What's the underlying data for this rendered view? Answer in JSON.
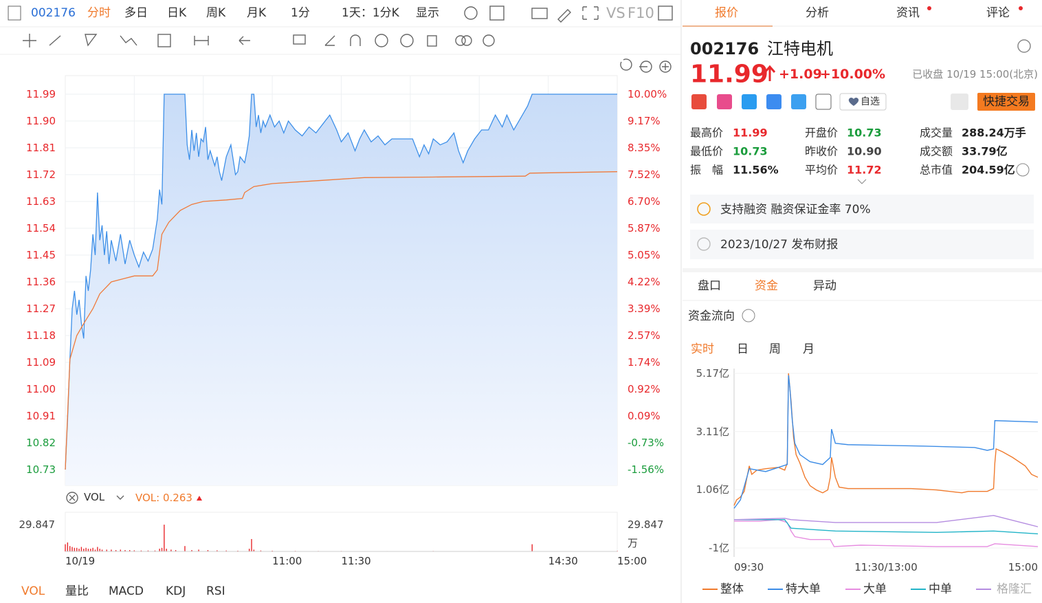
{
  "toolbar": {
    "code": "002176",
    "items": [
      "分时",
      "多日",
      "日K",
      "周K",
      "月K",
      "1分",
      "1天：1分K",
      "显示",
      "VS",
      "F10"
    ],
    "active": 0
  },
  "price_chart": {
    "type": "line",
    "xlim": [
      0,
      240
    ],
    "ylim": [
      10.73,
      11.99
    ],
    "yticks": [
      11.99,
      {
        "value": 11.9,
        "label": "11.90"
      },
      11.81,
      11.72,
      11.63,
      11.54,
      11.45,
      11.36,
      11.27,
      11.18,
      11.09,
      {
        "value": 11,
        "label": "11.00"
      },
      10.91,
      10.82,
      10.73
    ],
    "y2lim": [
      -1.56,
      10
    ],
    "y2ticks": [
      {
        "value": 10,
        "label": "10.00%"
      },
      {
        "value": 9.17,
        "label": "9.17%"
      },
      {
        "value": 8.35,
        "label": "8.35%"
      },
      {
        "value": 7.52,
        "label": "7.52%"
      },
      {
        "value": 6.7,
        "label": "6.70%"
      },
      {
        "value": 5.87,
        "label": "5.87%"
      },
      {
        "value": 5.05,
        "label": "5.05%"
      },
      {
        "value": 4.22,
        "label": "4.22%"
      },
      {
        "value": 3.39,
        "label": "3.39%"
      },
      {
        "value": 2.57,
        "label": "2.57%"
      },
      {
        "value": 1.74,
        "label": "1.74%"
      },
      {
        "value": 0.92,
        "label": "0.92%"
      },
      {
        "value": 0.09,
        "label": "0.09%"
      },
      {
        "value": -0.73,
        "label": "-0.73%"
      },
      {
        "value": -1.56,
        "label": "-1.56%"
      }
    ],
    "xticks": [
      {
        "value": 0,
        "label": "10/19"
      },
      {
        "value": 90,
        "label": "11:00"
      },
      {
        "value": 120,
        "label": "11:30"
      },
      {
        "value": 210,
        "label": "14:30"
      },
      {
        "value": 240,
        "label": "15:00"
      }
    ],
    "xgrid": [
      30,
      60,
      90,
      120,
      150,
      180,
      210
    ],
    "grid": true,
    "up_color": "#e8282c",
    "down_color": "#1a9c3c",
    "series": [
      {
        "color": "#3d8fe8",
        "x": [
          0,
          1,
          2,
          3,
          4,
          5,
          6,
          7,
          8,
          9,
          10,
          11,
          12,
          13,
          14,
          15,
          16,
          17,
          18,
          19,
          20,
          22,
          24,
          26,
          28,
          30,
          32,
          34,
          36,
          38,
          40,
          41,
          42,
          43,
          52,
          53,
          54,
          55,
          56,
          57,
          58,
          59,
          60,
          61,
          62,
          63,
          65,
          66,
          67,
          68,
          70,
          72,
          74,
          75,
          76,
          78,
          79,
          80,
          81,
          82,
          83,
          84,
          85,
          86,
          87,
          89,
          91,
          93,
          95,
          97,
          100,
          103,
          106,
          109,
          112,
          115,
          118,
          120,
          123,
          126,
          128,
          130,
          133,
          136,
          139,
          142,
          145,
          148,
          151,
          154,
          156,
          158,
          160,
          163,
          166,
          169,
          171,
          173,
          175,
          178,
          181,
          184,
          187,
          190,
          192,
          195,
          198,
          201,
          203,
          240
        ],
        "values": [
          10.73,
          10.9,
          11.1,
          11.27,
          11.33,
          11.25,
          11.3,
          11.22,
          11.17,
          11.38,
          11.33,
          11.4,
          11.52,
          11.45,
          11.66,
          11.5,
          11.55,
          11.45,
          11.53,
          11.42,
          11.5,
          11.43,
          11.52,
          11.42,
          11.5,
          11.45,
          11.41,
          11.46,
          11.43,
          11.47,
          11.57,
          11.67,
          11.62,
          11.99,
          11.99,
          11.82,
          11.77,
          11.87,
          11.8,
          11.86,
          11.78,
          11.84,
          11.83,
          11.88,
          11.77,
          11.8,
          11.75,
          11.78,
          11.73,
          11.7,
          11.78,
          11.82,
          11.72,
          11.73,
          11.78,
          11.76,
          11.8,
          11.85,
          11.99,
          11.99,
          11.88,
          11.92,
          11.86,
          11.9,
          11.88,
          11.92,
          11.88,
          11.9,
          11.86,
          11.9,
          11.87,
          11.85,
          11.88,
          11.86,
          11.89,
          11.92,
          11.87,
          11.83,
          11.86,
          11.8,
          11.84,
          11.87,
          11.83,
          11.85,
          11.82,
          11.84,
          11.84,
          11.84,
          11.84,
          11.78,
          11.82,
          11.79,
          11.84,
          11.82,
          11.83,
          11.86,
          11.8,
          11.76,
          11.8,
          11.84,
          11.87,
          11.87,
          11.92,
          11.88,
          11.92,
          11.87,
          11.91,
          11.95,
          11.99,
          11.99
        ]
      },
      {
        "color": "#f07a3a",
        "x": [
          0,
          2,
          5,
          8,
          12,
          15,
          20,
          25,
          30,
          38,
          40,
          42,
          45,
          50,
          55,
          60,
          70,
          77,
          78,
          82,
          90,
          110,
          130,
          160,
          200,
          202,
          240
        ],
        "values": [
          10.73,
          11.1,
          11.18,
          11.22,
          11.27,
          11.32,
          11.36,
          11.37,
          11.38,
          11.38,
          11.4,
          11.52,
          11.56,
          11.6,
          11.62,
          11.63,
          11.635,
          11.64,
          11.66,
          11.68,
          11.69,
          11.7,
          11.71,
          11.712,
          11.715,
          11.725,
          11.73
        ]
      }
    ]
  },
  "volume_chart": {
    "type": "bar",
    "indicator": "VOL",
    "readout": "VOL: 0.263",
    "unit": "万",
    "color": "#e8282c",
    "ylim": [
      0,
      29.847
    ],
    "yticks": [
      29.847
    ],
    "x": [
      0,
      1,
      2,
      3,
      4,
      5,
      6,
      7,
      8,
      9,
      10,
      11,
      12,
      13,
      14,
      15,
      16,
      18,
      20,
      22,
      24,
      26,
      28,
      30,
      33,
      36,
      39,
      41,
      42,
      43,
      44,
      46,
      48,
      52,
      55,
      58,
      62,
      66,
      70,
      75,
      80,
      81,
      82,
      85,
      90,
      100,
      110,
      120,
      140,
      160,
      180,
      203,
      220,
      240
    ],
    "values": [
      8,
      10,
      6,
      5,
      4,
      4,
      3,
      5,
      3,
      4,
      3,
      3,
      4,
      2,
      5,
      3,
      2,
      2,
      2,
      1.5,
      2,
      1.5,
      1.5,
      1.2,
      1,
      1,
      1,
      3,
      4,
      29.8,
      3,
      2,
      1.5,
      6,
      1.5,
      2,
      1.5,
      1.2,
      1,
      0.8,
      3,
      13.8,
      2,
      1,
      0.8,
      0.6,
      0.5,
      0.5,
      0.4,
      0.5,
      0.4,
      8,
      0.4,
      0.5
    ]
  },
  "bottom_tabs": [
    "VOL",
    "量比",
    "MACD",
    "KDJ",
    "RSI"
  ],
  "quote": {
    "tabs": [
      "报价",
      "分析",
      "资讯",
      "评论"
    ],
    "code": "002176",
    "name": "江特电机",
    "price": "11.99",
    "change": "+1.09",
    "change_pct": "+10.00%",
    "status": "已收盘 10/19 15:00(北京)",
    "watchlist": "自选",
    "trade": "快捷交易",
    "stats": [
      {
        "label": "最高价",
        "value": "11.99",
        "color": "#e8282c"
      },
      {
        "label": "开盘价",
        "value": "10.73",
        "color": "#1a9c3c"
      },
      {
        "label": "成交量",
        "value": "288.24万手",
        "color": "#222222"
      },
      {
        "label": "最低价",
        "value": "10.73",
        "color": "#1a9c3c"
      },
      {
        "label": "昨收价",
        "value": "10.90",
        "color": "#444444"
      },
      {
        "label": "成交额",
        "value": "33.79亿",
        "color": "#222222"
      },
      {
        "label": "振　幅",
        "value": "11.56%",
        "color": "#222222"
      },
      {
        "label": "平均价",
        "value": "11.72",
        "color": "#e8282c"
      },
      {
        "label": "总市值",
        "value": "204.59亿",
        "color": "#222222"
      }
    ],
    "notices": [
      "支持融资 融资保证金率 70%",
      "2023/10/27 发布财报"
    ],
    "subtabs": [
      "盘口",
      "资金",
      "异动"
    ]
  },
  "fund_flow": {
    "type": "line",
    "title": "资金流向",
    "periods": [
      "实时",
      "日",
      "周",
      "月"
    ],
    "xlim": [
      0,
      240
    ],
    "ylim": [
      -1,
      5.17
    ],
    "yticks": [
      {
        "value": 5.17,
        "label": "5.17亿"
      },
      {
        "value": 3.11,
        "label": "3.11亿"
      },
      {
        "value": 1.06,
        "label": "1.06亿"
      },
      {
        "value": -1,
        "label": "-1亿"
      }
    ],
    "xticks": [
      {
        "value": 0,
        "label": "09:30"
      },
      {
        "value": 120,
        "label": "11:30/13:00"
      },
      {
        "value": 240,
        "label": "15:00"
      }
    ],
    "watermark": "格隆汇",
    "series": [
      {
        "name": "整体",
        "color": "#f07a2c",
        "x": [
          0,
          2,
          5,
          8,
          12,
          14,
          18,
          25,
          35,
          40,
          42,
          43,
          45,
          47,
          49,
          52,
          56,
          60,
          65,
          70,
          74,
          76,
          77,
          80,
          83,
          90,
          100,
          120,
          140,
          160,
          180,
          185,
          200,
          205,
          206,
          207,
          212,
          220,
          230,
          235,
          240
        ],
        "values": [
          0.5,
          0.7,
          0.8,
          1.0,
          1.9,
          1.6,
          1.75,
          1.8,
          1.85,
          1.75,
          2.0,
          5.17,
          4.2,
          2.9,
          2.3,
          2.0,
          1.5,
          1.2,
          1.05,
          0.95,
          1.05,
          1.5,
          2.2,
          1.5,
          1.15,
          1.1,
          1.1,
          1.1,
          1.1,
          1.05,
          0.95,
          1.0,
          1.0,
          1.1,
          2.0,
          2.5,
          2.4,
          2.2,
          1.9,
          1.6,
          1.5
        ]
      },
      {
        "name": "特大单",
        "color": "#3c8ce6",
        "x": [
          0,
          5,
          12,
          25,
          42,
          43,
          44,
          46,
          48,
          52,
          60,
          70,
          76,
          77,
          80,
          90,
          150,
          190,
          200,
          205,
          206,
          240
        ],
        "values": [
          0.4,
          0.7,
          1.8,
          1.7,
          1.95,
          5.1,
          4.7,
          3.5,
          2.7,
          2.3,
          2.05,
          1.95,
          2.2,
          3.2,
          2.7,
          2.65,
          2.6,
          2.55,
          2.45,
          2.5,
          3.5,
          3.45
        ]
      },
      {
        "name": "大单",
        "color": "#e68ce0",
        "x": [
          0,
          20,
          35,
          42,
          45,
          48,
          60,
          76,
          79,
          100,
          160,
          200,
          206,
          240
        ],
        "values": [
          -0.05,
          -0.05,
          0,
          -0.1,
          -0.4,
          -0.6,
          -0.7,
          -0.7,
          -0.95,
          -0.9,
          -0.95,
          -0.95,
          -0.85,
          -0.95
        ]
      },
      {
        "name": "中单",
        "color": "#22b4c8",
        "x": [
          0,
          40,
          45,
          80,
          160,
          205,
          240
        ],
        "values": [
          0,
          0,
          -0.3,
          -0.4,
          -0.45,
          -0.4,
          -0.5
        ]
      },
      {
        "color": "#b48ce0",
        "x": [
          0,
          40,
          45,
          80,
          160,
          205,
          240
        ],
        "values": [
          0,
          0.05,
          0,
          -0.1,
          -0.1,
          0.15,
          -0.25
        ]
      }
    ]
  }
}
